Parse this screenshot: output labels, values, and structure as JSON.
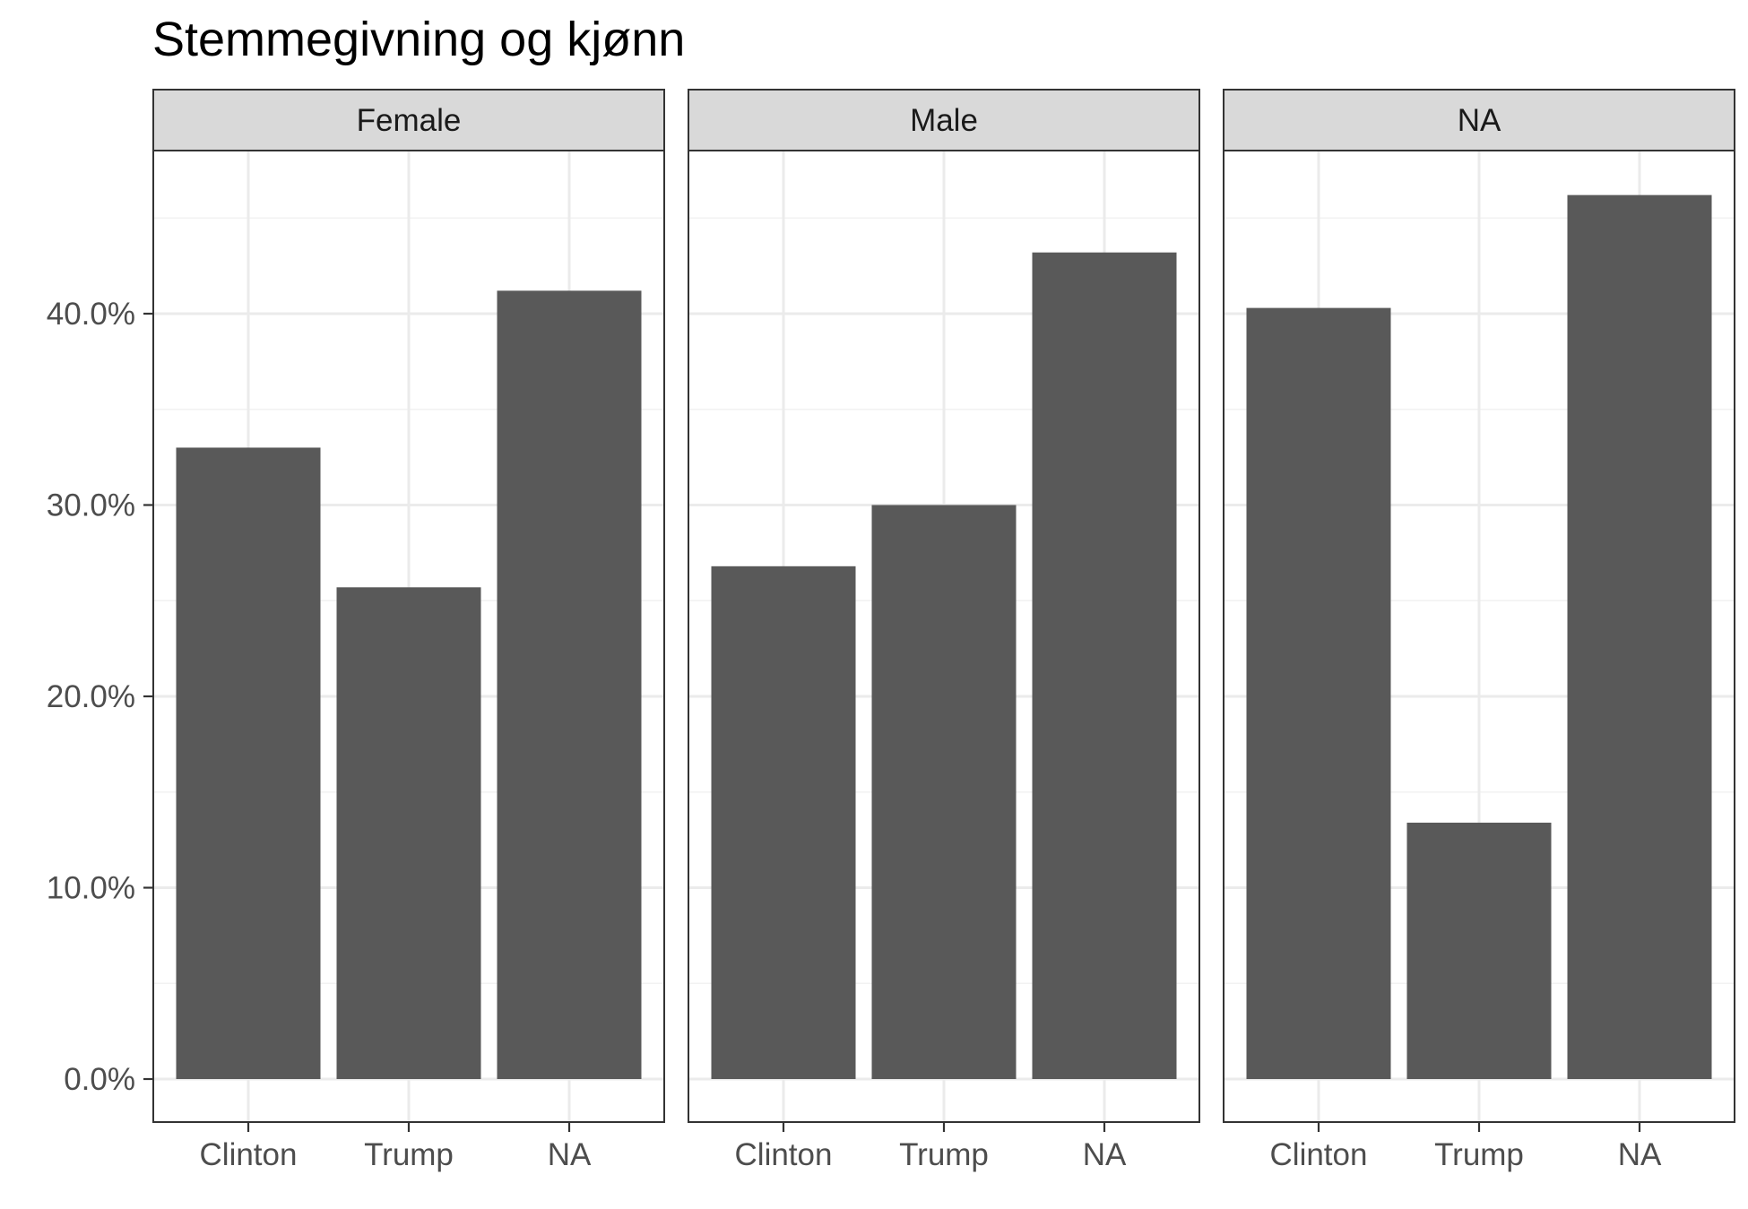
{
  "chart_data": {
    "type": "bar",
    "title": "Stemmegivning og kjønn",
    "xlabel": "",
    "ylabel": "",
    "facet_labels": [
      "Female",
      "Male",
      "NA"
    ],
    "categories": [
      "Clinton",
      "Trump",
      "NA"
    ],
    "y_ticks": [
      0,
      10,
      20,
      30,
      40
    ],
    "y_tick_labels": [
      "0.0%",
      "10.0%",
      "20.0%",
      "30.0%",
      "40.0%"
    ],
    "ylim": [
      0,
      48.5
    ],
    "grid": true,
    "facets": [
      {
        "label": "Female",
        "values": [
          33.0,
          25.7,
          41.2
        ]
      },
      {
        "label": "Male",
        "values": [
          26.8,
          30.0,
          43.2
        ]
      },
      {
        "label": "NA",
        "values": [
          40.3,
          13.4,
          46.2
        ]
      }
    ],
    "colors": {
      "bar": "#595959",
      "strip_fill": "#d9d9d9",
      "panel_border": "#333333",
      "grid_major": "#ebebeb",
      "grid_minor": "#f2f2f2",
      "tick": "#333333"
    }
  }
}
